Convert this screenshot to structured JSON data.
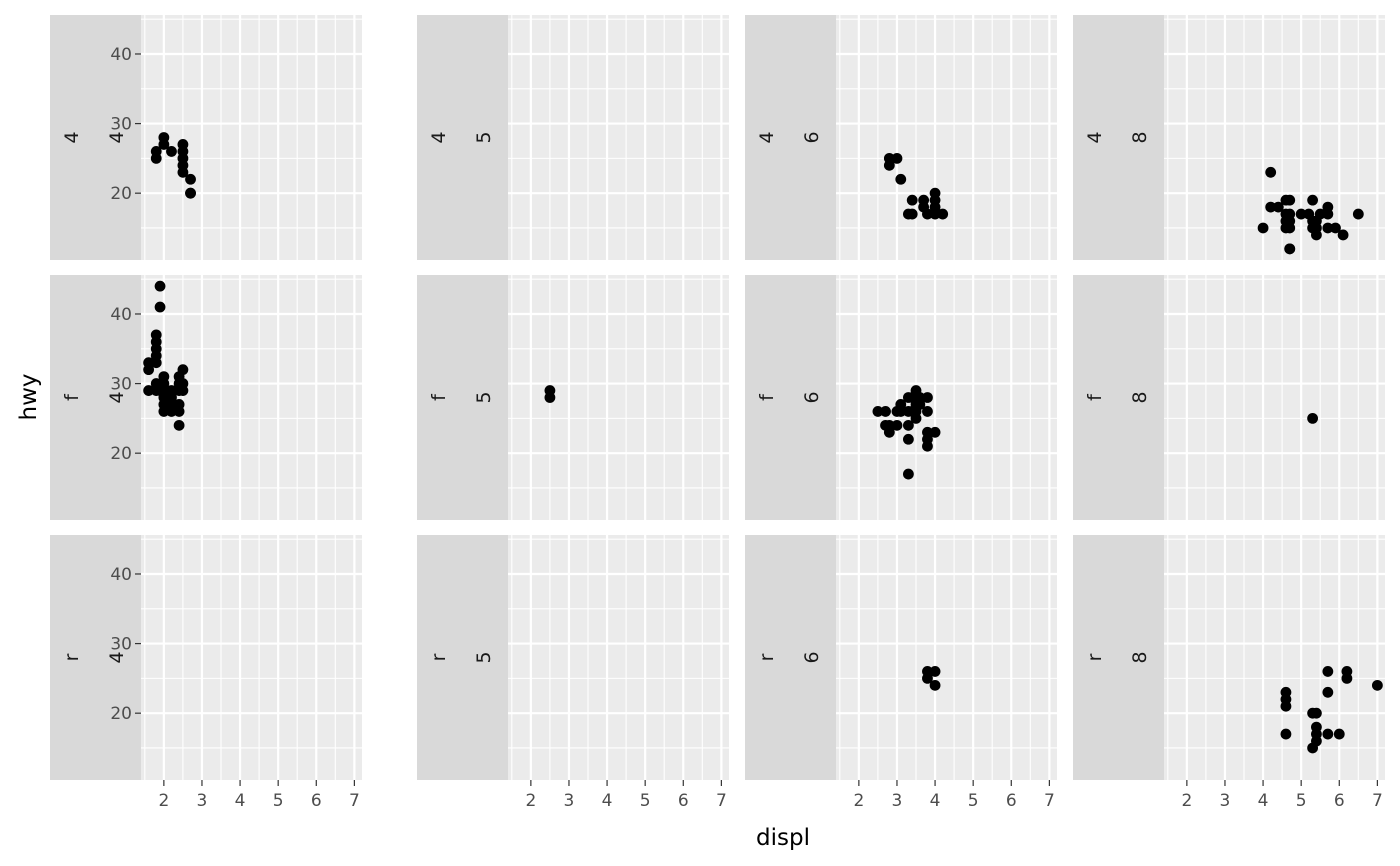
{
  "chart_data": {
    "type": "scatter",
    "xlabel": "displ",
    "ylabel": "hwy",
    "xlim": [
      1.4,
      7.2
    ],
    "ylim": [
      10.4,
      45.6
    ],
    "xticks": [
      2,
      3,
      4,
      5,
      6,
      7
    ],
    "yticks": [
      20,
      30,
      40
    ],
    "x_tick_labels": [
      "2",
      "3",
      "4",
      "5",
      "6",
      "7"
    ],
    "y_tick_labels": [
      "20",
      "30",
      "40"
    ],
    "grid": true,
    "rows": [
      "4",
      "f",
      "r"
    ],
    "cols": [
      "4",
      "5",
      "6",
      "8"
    ],
    "panels": [
      {
        "row_label": "4",
        "col_label": "4",
        "points": [
          [
            1.8,
            26
          ],
          [
            1.8,
            25
          ],
          [
            2.0,
            28
          ],
          [
            2.0,
            27
          ],
          [
            2.2,
            26
          ],
          [
            2.5,
            27
          ],
          [
            2.5,
            26
          ],
          [
            2.5,
            25
          ],
          [
            2.5,
            24
          ],
          [
            2.5,
            23
          ],
          [
            2.7,
            22
          ],
          [
            2.7,
            20
          ],
          [
            2.7,
            20
          ]
        ]
      },
      {
        "row_label": "4",
        "col_label": "5",
        "points": []
      },
      {
        "row_label": "4",
        "col_label": "6",
        "points": [
          [
            2.8,
            25
          ],
          [
            2.8,
            24
          ],
          [
            3.0,
            25
          ],
          [
            3.1,
            22
          ],
          [
            3.3,
            17
          ],
          [
            3.4,
            17
          ],
          [
            3.4,
            19
          ],
          [
            3.7,
            19
          ],
          [
            3.7,
            18
          ],
          [
            3.8,
            17
          ],
          [
            4.0,
            20
          ],
          [
            4.0,
            19
          ],
          [
            4.0,
            18
          ],
          [
            4.0,
            17
          ],
          [
            4.2,
            17
          ]
        ]
      },
      {
        "row_label": "4",
        "col_label": "8",
        "points": [
          [
            4.0,
            15
          ],
          [
            4.2,
            23
          ],
          [
            4.2,
            18
          ],
          [
            4.4,
            18
          ],
          [
            4.6,
            19
          ],
          [
            4.6,
            17
          ],
          [
            4.6,
            16
          ],
          [
            4.6,
            15
          ],
          [
            4.7,
            19
          ],
          [
            4.7,
            17
          ],
          [
            4.7,
            16
          ],
          [
            4.7,
            15
          ],
          [
            4.7,
            12
          ],
          [
            4.7,
            12
          ],
          [
            5.0,
            17
          ],
          [
            5.2,
            17
          ],
          [
            5.3,
            19
          ],
          [
            5.3,
            16
          ],
          [
            5.3,
            15
          ],
          [
            5.4,
            14
          ],
          [
            5.4,
            15
          ],
          [
            5.4,
            16
          ],
          [
            5.5,
            17
          ],
          [
            5.7,
            18
          ],
          [
            5.7,
            17
          ],
          [
            5.7,
            15
          ],
          [
            5.9,
            15
          ],
          [
            6.1,
            14
          ],
          [
            6.5,
            17
          ]
        ]
      },
      {
        "row_label": "f",
        "col_label": "4",
        "points": [
          [
            1.6,
            33
          ],
          [
            1.6,
            32
          ],
          [
            1.6,
            29
          ],
          [
            1.8,
            37
          ],
          [
            1.8,
            36
          ],
          [
            1.8,
            35
          ],
          [
            1.8,
            34
          ],
          [
            1.8,
            33
          ],
          [
            1.8,
            30
          ],
          [
            1.8,
            29
          ],
          [
            1.9,
            44
          ],
          [
            1.9,
            41
          ],
          [
            1.9,
            29
          ],
          [
            2.0,
            31
          ],
          [
            2.0,
            30
          ],
          [
            2.0,
            29
          ],
          [
            2.0,
            28
          ],
          [
            2.0,
            27
          ],
          [
            2.0,
            26
          ],
          [
            2.2,
            29
          ],
          [
            2.2,
            28
          ],
          [
            2.2,
            27
          ],
          [
            2.2,
            26
          ],
          [
            2.4,
            31
          ],
          [
            2.4,
            30
          ],
          [
            2.4,
            29
          ],
          [
            2.4,
            27
          ],
          [
            2.4,
            26
          ],
          [
            2.4,
            24
          ],
          [
            2.5,
            32
          ],
          [
            2.5,
            30
          ],
          [
            2.5,
            29
          ]
        ]
      },
      {
        "row_label": "f",
        "col_label": "5",
        "points": [
          [
            2.5,
            29
          ],
          [
            2.5,
            28
          ]
        ]
      },
      {
        "row_label": "f",
        "col_label": "6",
        "points": [
          [
            2.5,
            26
          ],
          [
            2.7,
            26
          ],
          [
            2.7,
            24
          ],
          [
            2.8,
            24
          ],
          [
            2.8,
            23
          ],
          [
            3.0,
            26
          ],
          [
            3.0,
            24
          ],
          [
            3.1,
            27
          ],
          [
            3.1,
            26
          ],
          [
            3.3,
            28
          ],
          [
            3.3,
            26
          ],
          [
            3.3,
            24
          ],
          [
            3.3,
            22
          ],
          [
            3.3,
            17
          ],
          [
            3.4,
            28
          ],
          [
            3.4,
            26
          ],
          [
            3.5,
            29
          ],
          [
            3.5,
            27
          ],
          [
            3.5,
            26
          ],
          [
            3.5,
            25
          ],
          [
            3.6,
            28
          ],
          [
            3.6,
            27
          ],
          [
            3.8,
            28
          ],
          [
            3.8,
            26
          ],
          [
            3.8,
            23
          ],
          [
            3.8,
            22
          ],
          [
            3.8,
            21
          ],
          [
            4.0,
            23
          ]
        ]
      },
      {
        "row_label": "f",
        "col_label": "8",
        "points": [
          [
            5.3,
            25
          ]
        ]
      },
      {
        "row_label": "r",
        "col_label": "4",
        "points": []
      },
      {
        "row_label": "r",
        "col_label": "5",
        "points": []
      },
      {
        "row_label": "r",
        "col_label": "6",
        "points": [
          [
            3.8,
            26
          ],
          [
            3.8,
            25
          ],
          [
            4.0,
            26
          ],
          [
            4.0,
            24
          ]
        ]
      },
      {
        "row_label": "r",
        "col_label": "8",
        "points": [
          [
            4.6,
            23
          ],
          [
            4.6,
            22
          ],
          [
            4.6,
            21
          ],
          [
            4.6,
            17
          ],
          [
            5.3,
            20
          ],
          [
            5.3,
            15
          ],
          [
            5.4,
            20
          ],
          [
            5.4,
            18
          ],
          [
            5.4,
            17
          ],
          [
            5.4,
            16
          ],
          [
            5.7,
            26
          ],
          [
            5.7,
            23
          ],
          [
            5.7,
            17
          ],
          [
            6.0,
            17
          ],
          [
            6.2,
            26
          ],
          [
            6.2,
            25
          ],
          [
            7.0,
            24
          ]
        ]
      }
    ]
  }
}
